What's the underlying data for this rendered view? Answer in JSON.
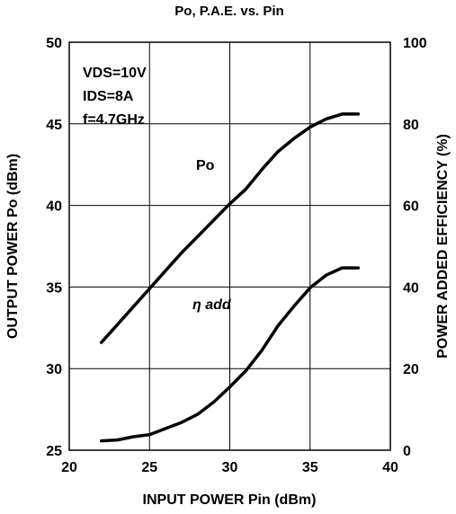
{
  "chart_data": {
    "type": "line",
    "title": "Po, P.A.E. vs. Pin",
    "xlabel": "INPUT POWER Pin (dBm)",
    "ylabel_left": "OUTPUT POWER Po (dBm)",
    "ylabel_right": "POWER ADDED EFFICIENCY  (%)",
    "xlim": [
      20,
      40
    ],
    "ylim_left": [
      25,
      50
    ],
    "ylim_right": [
      0,
      100
    ],
    "x_ticks": [
      "20",
      "25",
      "30",
      "35",
      "40"
    ],
    "y_ticks_left": [
      "25",
      "30",
      "35",
      "40",
      "45",
      "50"
    ],
    "y_ticks_right": [
      "0",
      "20",
      "40",
      "60",
      "80",
      "100"
    ],
    "grid": true,
    "conditions": [
      "VDS=10V",
      "IDS=8A",
      "f=4.7GHz"
    ],
    "series": [
      {
        "name": "Po",
        "axis": "left",
        "x": [
          22,
          23,
          24,
          25,
          26,
          27,
          28,
          29,
          30,
          31,
          32,
          33,
          34,
          35,
          36,
          37,
          38
        ],
        "values": [
          31.6,
          32.7,
          33.8,
          34.9,
          36.0,
          37.1,
          38.1,
          39.1,
          40.1,
          41.0,
          42.2,
          43.3,
          44.1,
          44.8,
          45.3,
          45.6,
          45.6
        ]
      },
      {
        "name": "η add",
        "axis": "right",
        "x": [
          22,
          23,
          24,
          25,
          26,
          27,
          28,
          29,
          30,
          31,
          32,
          33,
          34,
          35,
          36,
          37,
          38
        ],
        "values": [
          2.3,
          2.5,
          3.3,
          3.8,
          5.3,
          6.8,
          8.8,
          11.8,
          15.5,
          19.5,
          24.5,
          30.5,
          35.3,
          39.8,
          42.9,
          44.7,
          44.7
        ]
      }
    ]
  }
}
